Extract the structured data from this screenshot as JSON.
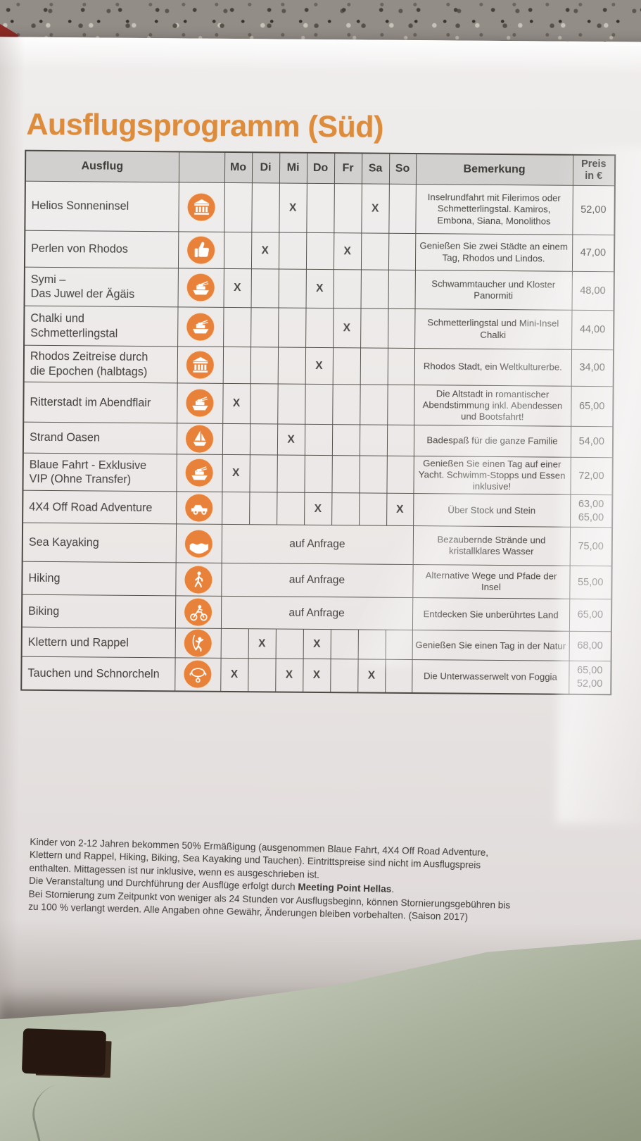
{
  "title": "Ausflugsprogramm (Süd)",
  "colors": {
    "accent_orange": "#dd8c3c",
    "icon_orange": "#e8823a",
    "header_grey": "#d2d0ce",
    "ink": "#45433f"
  },
  "table": {
    "headers": {
      "ausflug": "Ausflug",
      "days": [
        "Mo",
        "Di",
        "Mi",
        "Do",
        "Fr",
        "Sa",
        "So"
      ],
      "bemerkung": "Bemerkung",
      "preis_line1": "Preis",
      "preis_line2": "in €"
    },
    "mark": "X",
    "rows": [
      {
        "name": "Helios Sonneninsel",
        "icon": "temple-icon",
        "days": [
          "",
          "",
          "X",
          "",
          "",
          "X",
          ""
        ],
        "bemerkung": "Inselrundfahrt mit Filerimos oder Schmetterlingstal. Kamiros, Embona, Siana, Monolithos",
        "preis": [
          "52,00"
        ]
      },
      {
        "name": "Perlen von Rhodos",
        "icon": "thumbs-up-icon",
        "days": [
          "",
          "X",
          "",
          "",
          "X",
          "",
          ""
        ],
        "bemerkung": "Genießen Sie zwei Städte an einem Tag, Rhodos und Lindos.",
        "preis": [
          "47,00"
        ]
      },
      {
        "name": "Symi –\nDas Juwel der Ägäis",
        "icon": "ferry-icon",
        "days": [
          "X",
          "",
          "",
          "X",
          "",
          "",
          ""
        ],
        "bemerkung": "Schwammtaucher und Kloster Panormiti",
        "preis": [
          "48,00"
        ]
      },
      {
        "name": "Chalki und\nSchmetterlingstal",
        "icon": "ferry-icon",
        "days": [
          "",
          "",
          "",
          "",
          "X",
          "",
          ""
        ],
        "bemerkung": "Schmetterlingstal und Mini-Insel Chalki",
        "preis": [
          "44,00"
        ]
      },
      {
        "name": "Rhodos Zeitreise durch\ndie Epochen (halbtags)",
        "icon": "temple-icon",
        "days": [
          "",
          "",
          "",
          "X",
          "",
          "",
          ""
        ],
        "bemerkung": "Rhodos Stadt, ein Weltkulturerbe.",
        "preis": [
          "34,00"
        ]
      },
      {
        "name": "Ritterstadt im Abendflair",
        "icon": "ferry-icon",
        "days": [
          "X",
          "",
          "",
          "",
          "",
          "",
          ""
        ],
        "bemerkung": "Die Altstadt in romantischer Abendstimmung inkl. Abendessen und Bootsfahrt!",
        "preis": [
          "65,00"
        ]
      },
      {
        "name": "Strand Oasen",
        "icon": "sailboat-icon",
        "days": [
          "",
          "",
          "X",
          "",
          "",
          "",
          ""
        ],
        "bemerkung": "Badespaß für die ganze Familie",
        "preis": [
          "54,00"
        ]
      },
      {
        "name": "Blaue Fahrt - Exklusive\nVIP (Ohne Transfer)",
        "icon": "ferry-icon",
        "days": [
          "X",
          "",
          "",
          "",
          "",
          "",
          ""
        ],
        "bemerkung": "Genießen Sie einen Tag auf einer Yacht. Schwimm-Stopps und Essen inklusive!",
        "preis": [
          "72,00"
        ]
      },
      {
        "name": "4X4 Off Road Adventure",
        "icon": "jeep-icon",
        "days": [
          "",
          "",
          "",
          "X",
          "",
          "",
          "X"
        ],
        "bemerkung": "Über Stock und Stein",
        "preis": [
          "63,00",
          "65,00"
        ]
      },
      {
        "name": "Sea Kayaking",
        "icon": "kayak-icon",
        "request": "auf Anfrage",
        "days": [
          "",
          "",
          "",
          "",
          "",
          "",
          ""
        ],
        "bemerkung": "Bezaubernde Strände und kristallklares Wasser",
        "preis": [
          "75,00"
        ]
      },
      {
        "name": "Hiking",
        "icon": "hiker-icon",
        "request": "auf Anfrage",
        "days": [
          "",
          "",
          "",
          "",
          "",
          "",
          ""
        ],
        "bemerkung": "Alternative Wege und Pfade der Insel",
        "preis": [
          "55,00"
        ]
      },
      {
        "name": "Biking",
        "icon": "biker-icon",
        "request": "auf Anfrage",
        "days": [
          "",
          "",
          "",
          "",
          "",
          "",
          ""
        ],
        "bemerkung": "Entdecken Sie unberührtes Land",
        "preis": [
          "65,00"
        ]
      },
      {
        "name": "Klettern und Rappel",
        "icon": "climber-icon",
        "days": [
          "",
          "X",
          "",
          "X",
          "",
          "",
          ""
        ],
        "bemerkung": "Genießen Sie einen Tag in der Natur",
        "preis": [
          "68,00"
        ]
      },
      {
        "name": "Tauchen und Schnorcheln",
        "icon": "diver-icon",
        "days": [
          "X",
          "",
          "X",
          "X",
          "",
          "X",
          ""
        ],
        "bemerkung": "Die Unterwasserwelt von Foggia",
        "preis": [
          "65,00",
          "52,00"
        ]
      }
    ]
  },
  "footnotes": [
    [
      {
        "t": "Kinder von 2-12 Jahren bekommen 50% Ermäßigung (ausgenommen Blaue Fahrt, 4X4 Off Road Adventure,"
      }
    ],
    [
      {
        "t": "Klettern und Rappel, Hiking, Biking, Sea Kayaking und Tauchen). Eintrittspreise sind nicht im Ausflugspreis"
      }
    ],
    [
      {
        "t": "enthalten. Mittagessen ist nur inklusive, wenn es ausgeschrieben ist."
      }
    ],
    [
      {
        "t": "Die Veranstaltung und Durchführung der Ausflüge erfolgt durch "
      },
      {
        "t": "Meeting Point Hellas",
        "b": true
      },
      {
        "t": "."
      }
    ],
    [
      {
        "t": "Bei Stornierung zum Zeitpunkt von weniger als 24 Stunden vor Ausflugsbeginn, können Stornierungsgebühren bis"
      }
    ],
    [
      {
        "t": "zu 100 % verlangt werden. Alle Angaben ohne Gewähr, Änderungen bleiben vorbehalten. (Saison 2017)"
      }
    ]
  ]
}
